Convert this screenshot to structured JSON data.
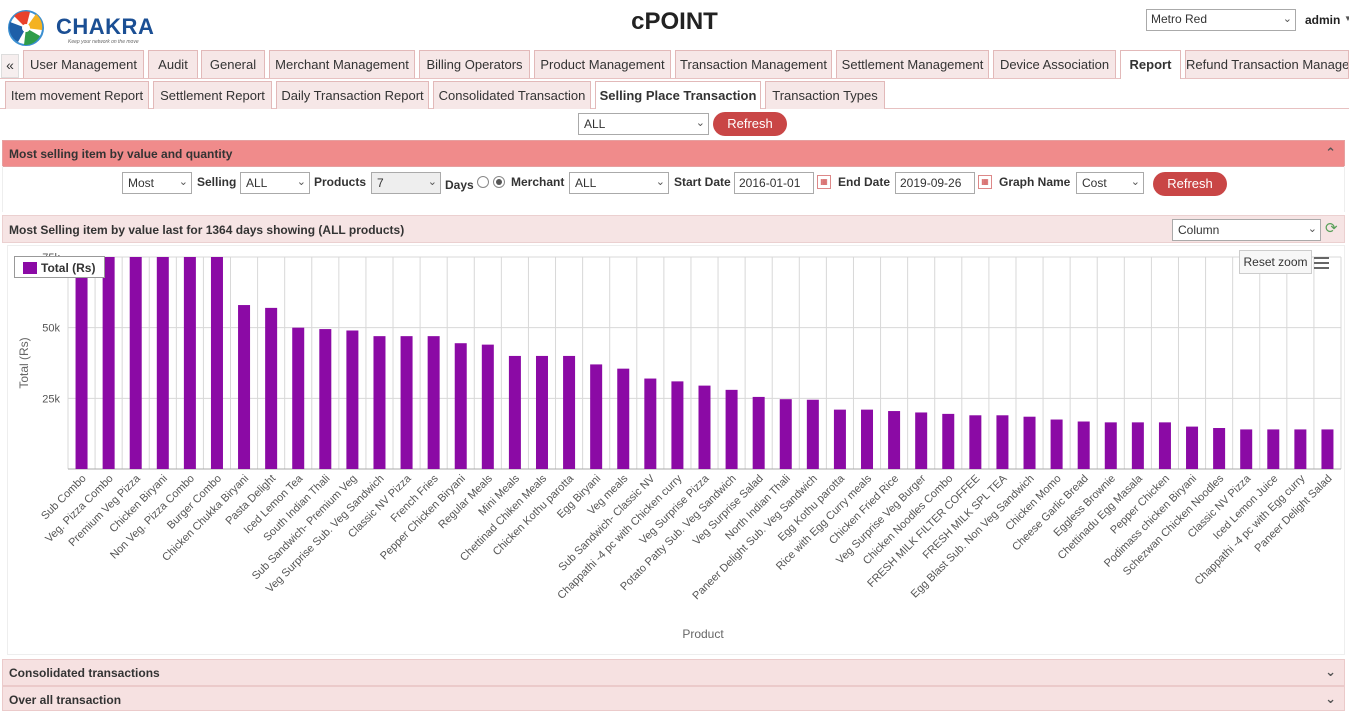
{
  "header": {
    "logo_text": "CHAKRA",
    "logo_tagline": "Keep your network on the move",
    "app_title": "cPOINT",
    "operator_select": "Metro Red",
    "user": "admin"
  },
  "main_tabs": [
    {
      "label": "User Management"
    },
    {
      "label": "Audit"
    },
    {
      "label": "General"
    },
    {
      "label": "Merchant Management"
    },
    {
      "label": "Billing Operators"
    },
    {
      "label": "Product Management"
    },
    {
      "label": "Transaction Management"
    },
    {
      "label": "Settlement Management"
    },
    {
      "label": "Device Association"
    },
    {
      "label": "Report",
      "active": true
    },
    {
      "label": "Refund Transaction Manage"
    }
  ],
  "sub_tabs": [
    {
      "label": "Item movement Report"
    },
    {
      "label": "Settlement Report"
    },
    {
      "label": "Daily Transaction Report"
    },
    {
      "label": "Consolidated Transaction"
    },
    {
      "label": "Selling Place Transaction",
      "active": true
    },
    {
      "label": "Transaction Types"
    }
  ],
  "top_filter": {
    "select": "ALL",
    "refresh_label": "Refresh"
  },
  "panel_most_selling": {
    "title": "Most selling item by value and quantity"
  },
  "filters": {
    "mode_select": "Most",
    "selling_label": "Selling",
    "selling_select": "ALL",
    "products_label": "Products",
    "products_select": "7",
    "days_label": "Days",
    "merchant_label": "Merchant",
    "merchant_select": "ALL",
    "start_date_label": "Start Date",
    "start_date": "2016-01-01",
    "end_date_label": "End Date",
    "end_date": "2019-09-26",
    "graph_name_label": "Graph Name",
    "graph_name_select": "Cost",
    "refresh_label": "Refresh"
  },
  "chart_header": {
    "title": "Most Selling item by value last for 1364 days showing (ALL products)",
    "chart_type_select": "Column"
  },
  "chart_controls": {
    "reset_zoom": "Reset zoom"
  },
  "panel_consolidated": {
    "title": "Consolidated transactions"
  },
  "panel_overall": {
    "title": "Over all transaction"
  },
  "colors": {
    "bar": "#8b0aa5",
    "panel_accent": "#f08b8b",
    "button": "#c94646"
  },
  "chart_data": {
    "type": "bar",
    "xlabel": "Product",
    "ylabel": "Total (Rs)",
    "ylim": [
      0,
      75000
    ],
    "yticks": [
      "25k",
      "50k",
      "75k"
    ],
    "grid": true,
    "legend_placement": "top-left",
    "series": [
      {
        "name": "Total (Rs)"
      }
    ],
    "categories": [
      "Sub Combo",
      "Veg. Pizza Combo",
      "Premium Veg Pizza",
      "Chicken Biryani",
      "Non Veg. Pizza Combo",
      "Burger Combo",
      "Chicken Chukka Biryani",
      "Pasta Delight",
      "Iced Lemon Tea",
      "South Indian Thali",
      "Sub Sandwich- Premium Veg",
      "Veg Surprise Sub. Veg Sandwich",
      "Classic NV Pizza",
      "French Fries",
      "Pepper Chicken Biryani",
      "Regular Meals",
      "Mini Meals",
      "Chettinad Chiken Meals",
      "Chicken Kothu parotta",
      "Egg Biryani",
      "Veg meals",
      "Sub Sandwich- Classic NV",
      "Chappathi -4 pc with Chicken curry",
      "Veg Surprise Pizza",
      "Potato Patty Sub. Veg Sandwich",
      "Veg Surprise Salad",
      "North Indian Thali",
      "Paneer Delight Sub. Veg Sandwich",
      "Egg Kothu parotta",
      "Rice with Egg Curry meals",
      "Chicken Fried Rice",
      "Veg Surprise Veg Burger",
      "Chicken Noodles Combo",
      "FRESH MILK FILTER COFFEE",
      "FRESH MILK SPL TEA",
      "Egg Blast Sub. Non Veg Sandwich",
      "Chicken Momo",
      "Cheese Garlic Bread",
      "Eggless Brownie",
      "Chettinadu Egg Masala",
      "Pepper Chicken",
      "Podimass chicken Biryani",
      "Schezwan Chicken Noodles",
      "Classic NV Pizza",
      "Iced Lemon Juice",
      "Chappathi -4 pc with Egg curry",
      "Paneer Delight Salad"
    ],
    "values": [
      72000,
      80000,
      80000,
      80000,
      80000,
      80000,
      58000,
      57000,
      50000,
      49500,
      49000,
      47000,
      47000,
      47000,
      44500,
      44000,
      40000,
      40000,
      40000,
      37000,
      35500,
      32000,
      31000,
      29500,
      28000,
      25500,
      24700,
      24500,
      21000,
      21000,
      20500,
      20000,
      19500,
      19000,
      19000,
      18500,
      17500,
      16800,
      16500,
      16500,
      16500,
      15000,
      14500,
      14000,
      14000,
      14000,
      14000
    ]
  }
}
